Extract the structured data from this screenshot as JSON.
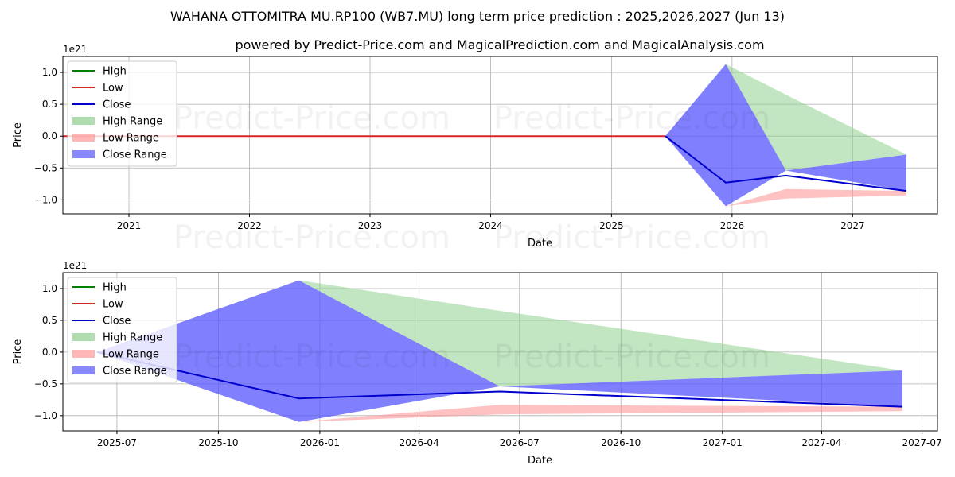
{
  "title": "WAHANA OTTOMITRA MU.RP100 (WB7.MU) long term price prediction : 2025,2026,2027 (Jun 13)",
  "subtitle": "powered by Predict-Price.com and MagicalPrediction.com and MagicalAnalysis.com",
  "watermark": "Predict-Price.com",
  "colors": {
    "high": "#008000",
    "low": "#d62728",
    "close": "#0000cc",
    "high_range": "#8fcf8f",
    "low_range": "#ff9999",
    "close_range": "#5555ff"
  },
  "legend": {
    "position": "upper-left",
    "items": [
      {
        "label": "High",
        "kind": "line",
        "color": "#008000"
      },
      {
        "label": "Low",
        "kind": "line",
        "color": "#d62728"
      },
      {
        "label": "Close",
        "kind": "line",
        "color": "#0000cc"
      },
      {
        "label": "High Range",
        "kind": "patch",
        "color": "#8fcf8f"
      },
      {
        "label": "Low Range",
        "kind": "patch",
        "color": "#ff9999"
      },
      {
        "label": "Close Range",
        "kind": "patch",
        "color": "#5555ff"
      }
    ]
  },
  "chart_data": [
    {
      "type": "area",
      "xlabel": "Date",
      "ylabel": "Price",
      "y_offset_label": "1e21",
      "grid": true,
      "xlim": [
        "2020-06-15",
        "2027-09-15"
      ],
      "ylim": [
        -1.22,
        1.25
      ],
      "x_ticks": [
        {
          "date": "2021-01-01",
          "label": "2021"
        },
        {
          "date": "2022-01-01",
          "label": "2022"
        },
        {
          "date": "2023-01-01",
          "label": "2023"
        },
        {
          "date": "2024-01-01",
          "label": "2024"
        },
        {
          "date": "2025-01-01",
          "label": "2025"
        },
        {
          "date": "2026-01-01",
          "label": "2026"
        },
        {
          "date": "2027-01-01",
          "label": "2027"
        }
      ],
      "y_ticks": [
        {
          "value": 1.0,
          "label": "1.0"
        },
        {
          "value": 0.5,
          "label": "0.5"
        },
        {
          "value": 0.0,
          "label": "0.0"
        },
        {
          "value": -0.5,
          "label": "−0.5"
        },
        {
          "value": -1.0,
          "label": "−1.0"
        }
      ],
      "history": {
        "series": "Low",
        "x": [
          "2020-06-15",
          "2025-06-13"
        ],
        "values": [
          0,
          0
        ]
      }
    },
    {
      "type": "area",
      "xlabel": "Date",
      "ylabel": "Price",
      "y_offset_label": "1e21",
      "grid": true,
      "xlim": [
        "2025-05-13",
        "2027-07-15"
      ],
      "ylim": [
        -1.24,
        1.25
      ],
      "x_ticks": [
        {
          "date": "2025-07-01",
          "label": "2025-07"
        },
        {
          "date": "2025-10-01",
          "label": "2025-10"
        },
        {
          "date": "2026-01-01",
          "label": "2026-01"
        },
        {
          "date": "2026-04-01",
          "label": "2026-04"
        },
        {
          "date": "2026-07-01",
          "label": "2026-07"
        },
        {
          "date": "2026-10-01",
          "label": "2026-10"
        },
        {
          "date": "2027-01-01",
          "label": "2027-01"
        },
        {
          "date": "2027-04-01",
          "label": "2027-04"
        },
        {
          "date": "2027-07-01",
          "label": "2027-07"
        }
      ],
      "y_ticks": [
        {
          "value": 1.0,
          "label": "1.0"
        },
        {
          "value": 0.5,
          "label": "0.5"
        },
        {
          "value": 0.0,
          "label": "0.0"
        },
        {
          "value": -0.5,
          "label": "−0.5"
        },
        {
          "value": -1.0,
          "label": "−1.0"
        }
      ]
    }
  ],
  "forecast": {
    "x": [
      "2025-06-13",
      "2025-12-13",
      "2026-06-13",
      "2027-06-13"
    ],
    "close": [
      0.0,
      -0.73,
      -0.62,
      -0.86
    ],
    "close_range_upper": [
      0.0,
      1.13,
      -0.54,
      -0.29
    ],
    "close_range_lower": [
      0.0,
      -1.1,
      -0.54,
      -0.86
    ],
    "high_range_upper": [
      0.0,
      1.13,
      0.65,
      -0.29
    ],
    "high_range_lower": [
      0.0,
      1.13,
      -0.54,
      -0.29
    ],
    "low_range_upper": [
      0.0,
      -1.1,
      -0.83,
      -0.86
    ],
    "low_range_lower": [
      0.0,
      -1.1,
      -0.98,
      -0.93
    ]
  }
}
